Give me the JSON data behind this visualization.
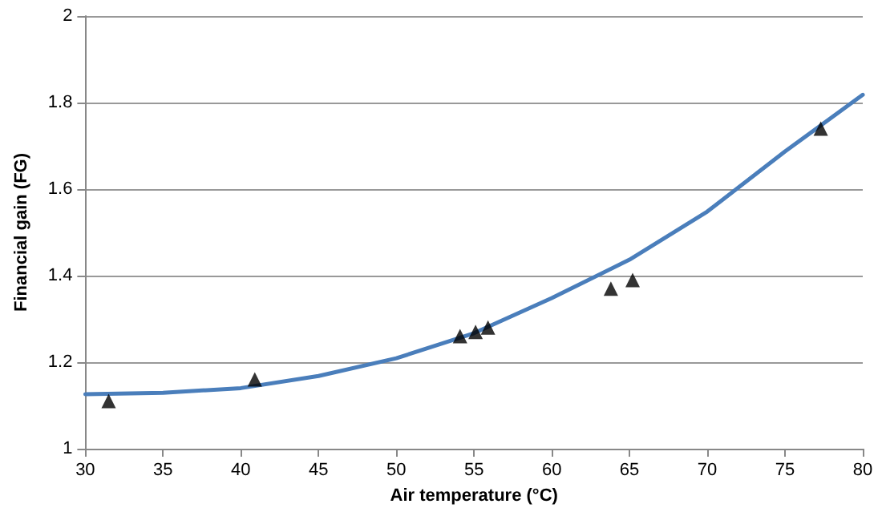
{
  "chart_data": {
    "type": "scatter",
    "xlabel": "Air temperature (°C)",
    "ylabel": "Financial gain (FG)",
    "xlim": [
      30,
      80
    ],
    "xticks": [
      30,
      35,
      40,
      45,
      50,
      55,
      60,
      65,
      70,
      75,
      80
    ],
    "ylim": [
      1,
      2
    ],
    "yticks": [
      1,
      1.2,
      1.4,
      1.6,
      1.8,
      2
    ],
    "grid": "y",
    "series": [
      {
        "color": "#000000",
        "marker": "triangle",
        "x": [
          31.5,
          40.9,
          54.1,
          55.1,
          55.9,
          63.8,
          65.2,
          77.3
        ],
        "values": [
          1.11,
          1.16,
          1.26,
          1.27,
          1.28,
          1.37,
          1.39,
          1.74
        ]
      },
      {
        "type": "line",
        "color": "#4a7ebb",
        "marker": "none",
        "line_style": "solid",
        "x": [
          30,
          35,
          40,
          45,
          50,
          55,
          60,
          65,
          70,
          75,
          80
        ],
        "values": [
          1.126,
          1.129,
          1.14,
          1.168,
          1.209,
          1.267,
          1.348,
          1.437,
          1.548,
          1.687,
          1.818
        ]
      }
    ]
  }
}
